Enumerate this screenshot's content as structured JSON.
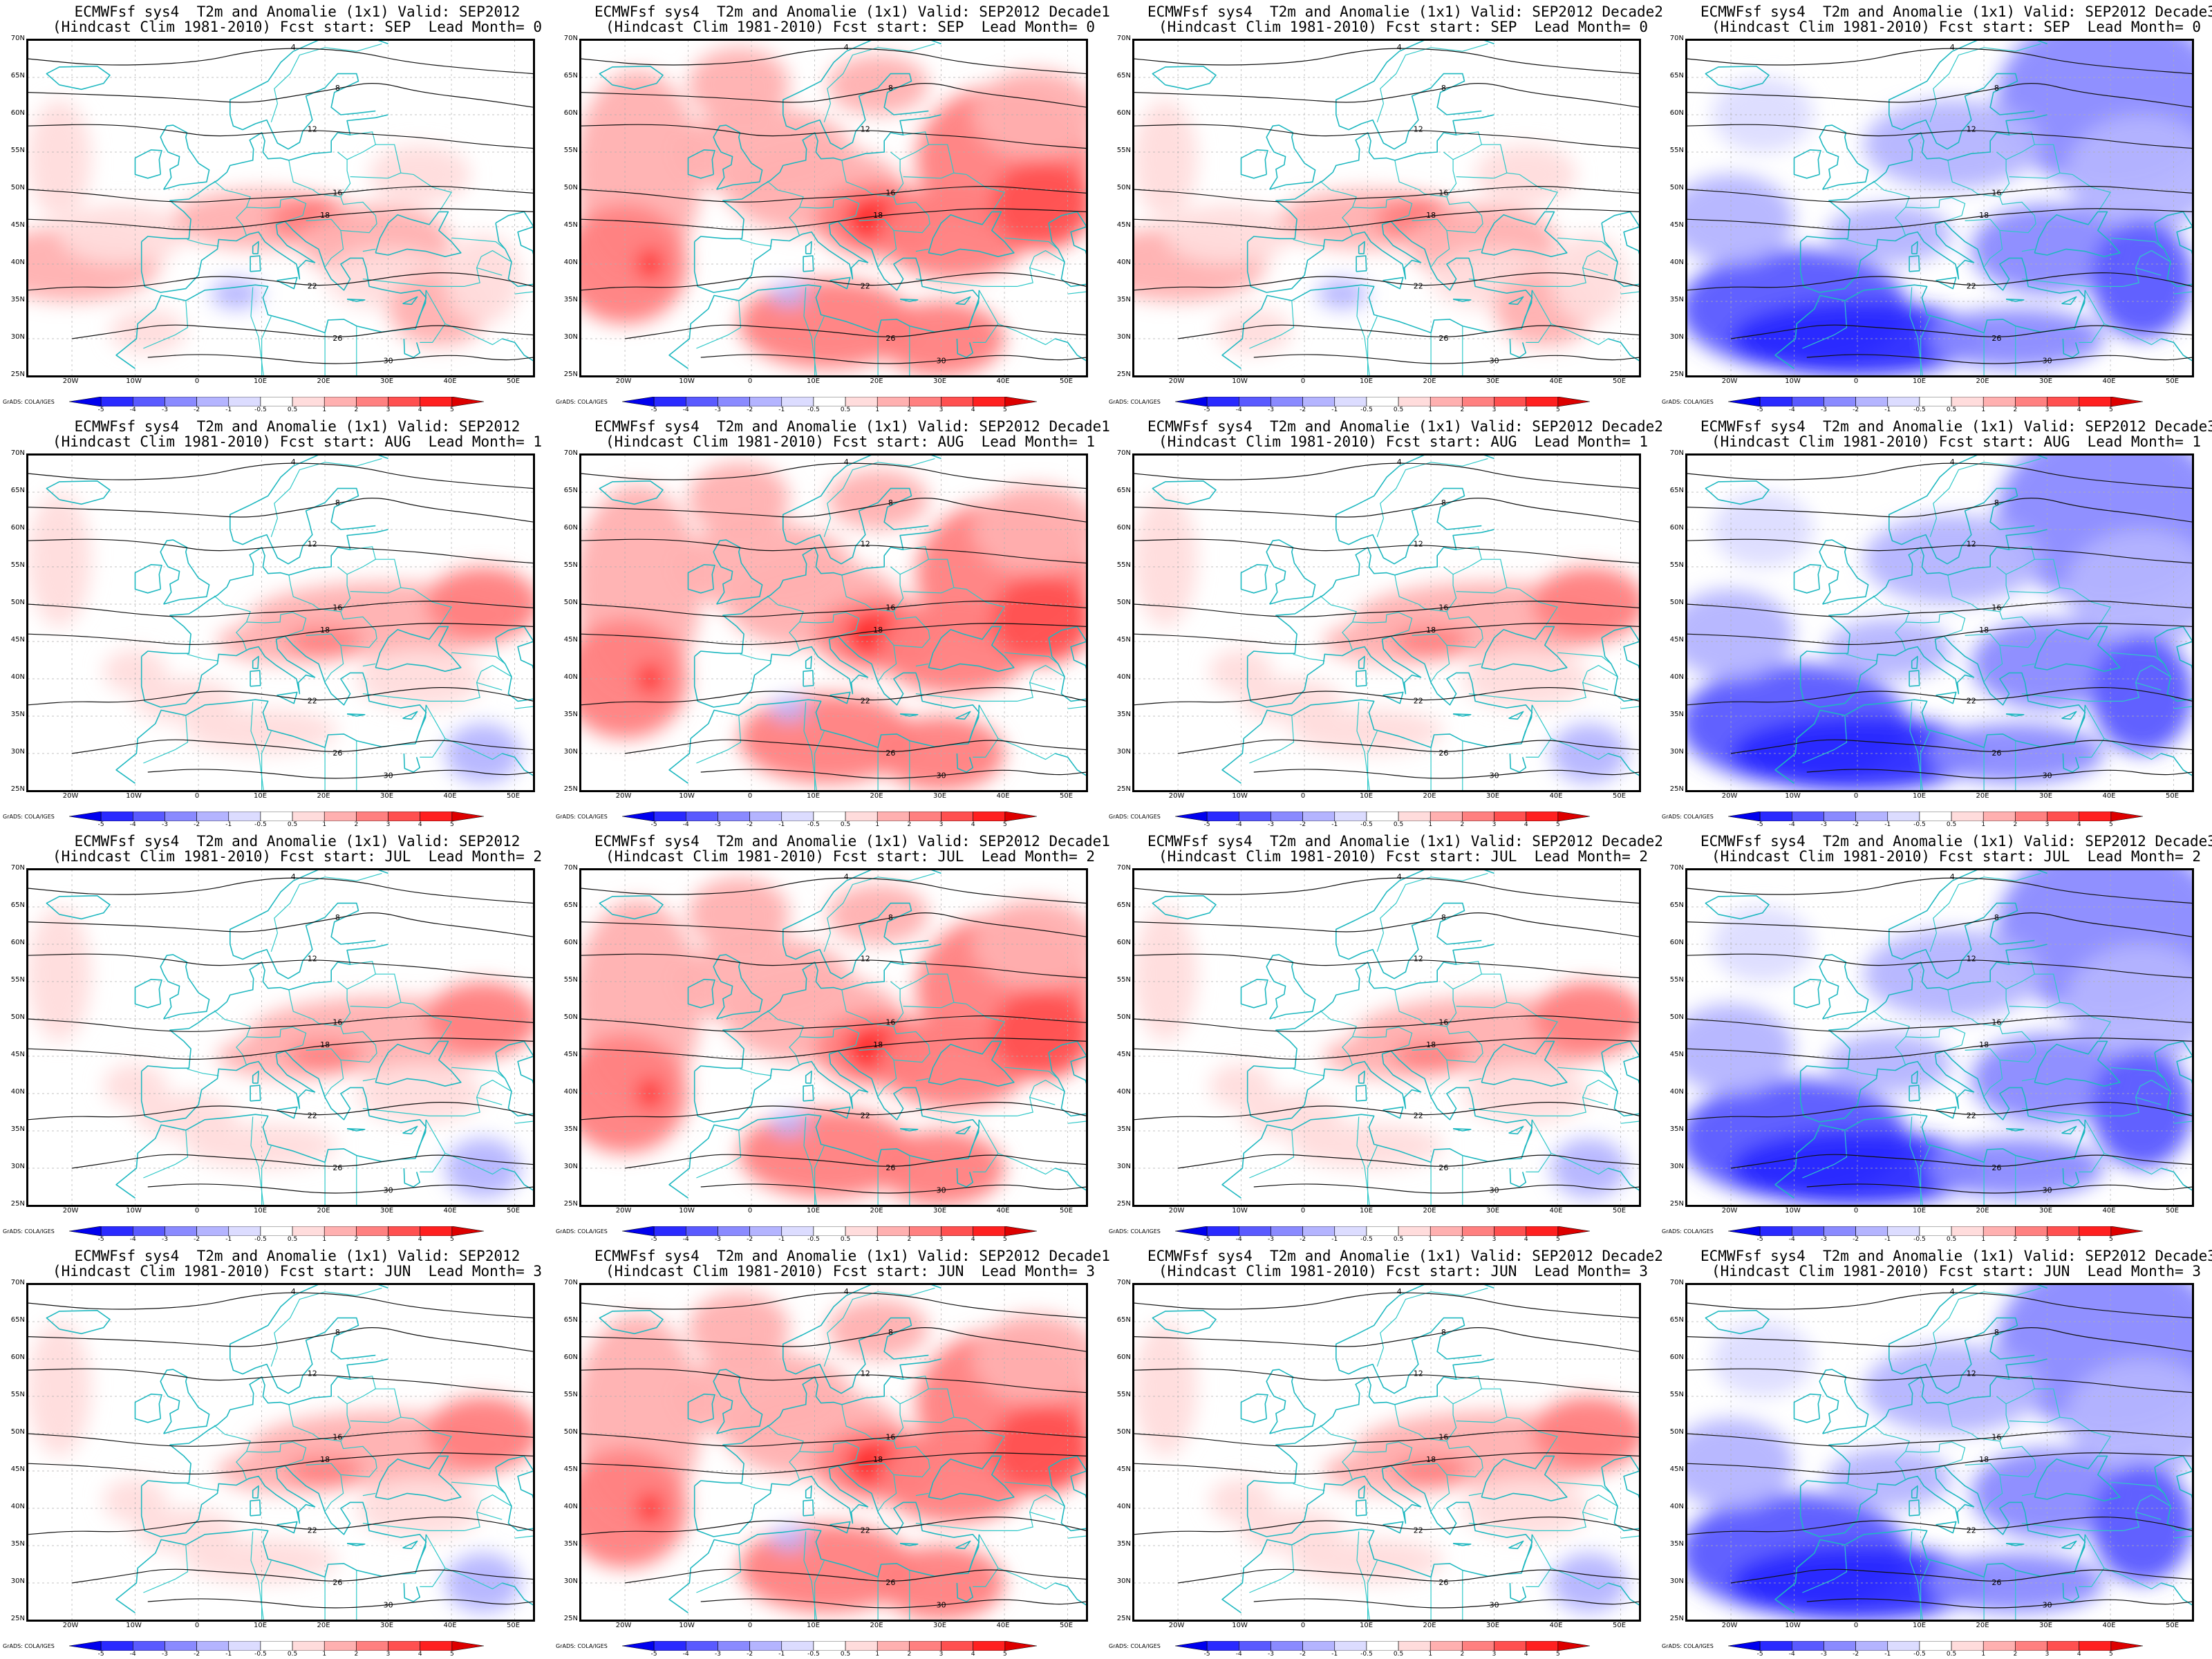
{
  "panels": [
    {
      "title1": "ECMWFsf sys4  T2m and Anomalie (1x1) Valid: SEP2012",
      "title2": "(Hindcast Clim 1981-2010) Fcst start: SEP  Lead Month= 0",
      "anomaly": "warm-south"
    },
    {
      "title1": "ECMWFsf sys4  T2m and Anomalie (1x1) Valid: SEP2012 Decade1",
      "title2": "(Hindcast Clim 1981-2010) Fcst start: SEP  Lead Month= 0",
      "anomaly": "warm-strong"
    },
    {
      "title1": "ECMWFsf sys4  T2m and Anomalie (1x1) Valid: SEP2012 Decade2",
      "title2": "(Hindcast Clim 1981-2010) Fcst start: SEP  Lead Month= 0",
      "anomaly": "warm-south"
    },
    {
      "title1": "ECMWFsf sys4  T2m and Anomalie (1x1) Valid: SEP2012 Decade3",
      "title2": "(Hindcast Clim 1981-2010) Fcst start: SEP  Lead Month= 0",
      "anomaly": "cold"
    },
    {
      "title1": "ECMWFsf sys4  T2m and Anomalie (1x1) Valid: SEP2012",
      "title2": "(Hindcast Clim 1981-2010) Fcst start: AUG  Lead Month= 1",
      "anomaly": "warm-east"
    },
    {
      "title1": "ECMWFsf sys4  T2m and Anomalie (1x1) Valid: SEP2012 Decade1",
      "title2": "(Hindcast Clim 1981-2010) Fcst start: AUG  Lead Month= 1",
      "anomaly": "warm-strong"
    },
    {
      "title1": "ECMWFsf sys4  T2m and Anomalie (1x1) Valid: SEP2012 Decade2",
      "title2": "(Hindcast Clim 1981-2010) Fcst start: AUG  Lead Month= 1",
      "anomaly": "warm-east"
    },
    {
      "title1": "ECMWFsf sys4  T2m and Anomalie (1x1) Valid: SEP2012 Decade3",
      "title2": "(Hindcast Clim 1981-2010) Fcst start: AUG  Lead Month= 1",
      "anomaly": "cold"
    },
    {
      "title1": "ECMWFsf sys4  T2m and Anomalie (1x1) Valid: SEP2012",
      "title2": "(Hindcast Clim 1981-2010) Fcst start: JUL  Lead Month= 2",
      "anomaly": "warm-east"
    },
    {
      "title1": "ECMWFsf sys4  T2m and Anomalie (1x1) Valid: SEP2012 Decade1",
      "title2": "(Hindcast Clim 1981-2010) Fcst start: JUL  Lead Month= 2",
      "anomaly": "warm-strong"
    },
    {
      "title1": "ECMWFsf sys4  T2m and Anomalie (1x1) Valid: SEP2012 Decade2",
      "title2": "(Hindcast Clim 1981-2010) Fcst start: JUL  Lead Month= 2",
      "anomaly": "warm-east"
    },
    {
      "title1": "ECMWFsf sys4  T2m and Anomalie (1x1) Valid: SEP2012 Decade3",
      "title2": "(Hindcast Clim 1981-2010) Fcst start: JUL  Lead Month= 2",
      "anomaly": "cold"
    },
    {
      "title1": "ECMWFsf sys4  T2m and Anomalie (1x1) Valid: SEP2012",
      "title2": "(Hindcast Clim 1981-2010) Fcst start: JUN  Lead Month= 3",
      "anomaly": "warm-east"
    },
    {
      "title1": "ECMWFsf sys4  T2m and Anomalie (1x1) Valid: SEP2012 Decade1",
      "title2": "(Hindcast Clim 1981-2010) Fcst start: JUN  Lead Month= 3",
      "anomaly": "warm-strong"
    },
    {
      "title1": "ECMWFsf sys4  T2m and Anomalie (1x1) Valid: SEP2012 Decade2",
      "title2": "(Hindcast Clim 1981-2010) Fcst start: JUN  Lead Month= 3",
      "anomaly": "warm-east"
    },
    {
      "title1": "ECMWFsf sys4  T2m and Anomalie (1x1) Valid: SEP2012 Decade3",
      "title2": "(Hindcast Clim 1981-2010) Fcst start: JUN  Lead Month= 3",
      "anomaly": "cold"
    }
  ],
  "axes": {
    "lat_labels": [
      "70N",
      "65N",
      "60N",
      "55N",
      "50N",
      "45N",
      "40N",
      "35N",
      "30N",
      "25N"
    ],
    "lon_labels": [
      "20W",
      "10W",
      "0",
      "10E",
      "20E",
      "30E",
      "40E",
      "50E"
    ]
  },
  "colorbar": {
    "labels": [
      "-5",
      "-4",
      "-3",
      "-2",
      "-1",
      "-0.5",
      "0.5",
      "1",
      "2",
      "3",
      "4",
      "5"
    ],
    "colors": [
      "#0000ee",
      "#2a2aff",
      "#5a5aff",
      "#8a8aff",
      "#b4b4ff",
      "#dcdcff",
      "#ffffff",
      "#ffdcdc",
      "#ffb0b0",
      "#ff8080",
      "#ff5050",
      "#ff2020",
      "#dd0000"
    ]
  },
  "credit": "GrADS: COLA/IGES",
  "contour_labels": [
    "4",
    "8",
    "12",
    "16",
    "18",
    "22",
    "26",
    "30"
  ]
}
